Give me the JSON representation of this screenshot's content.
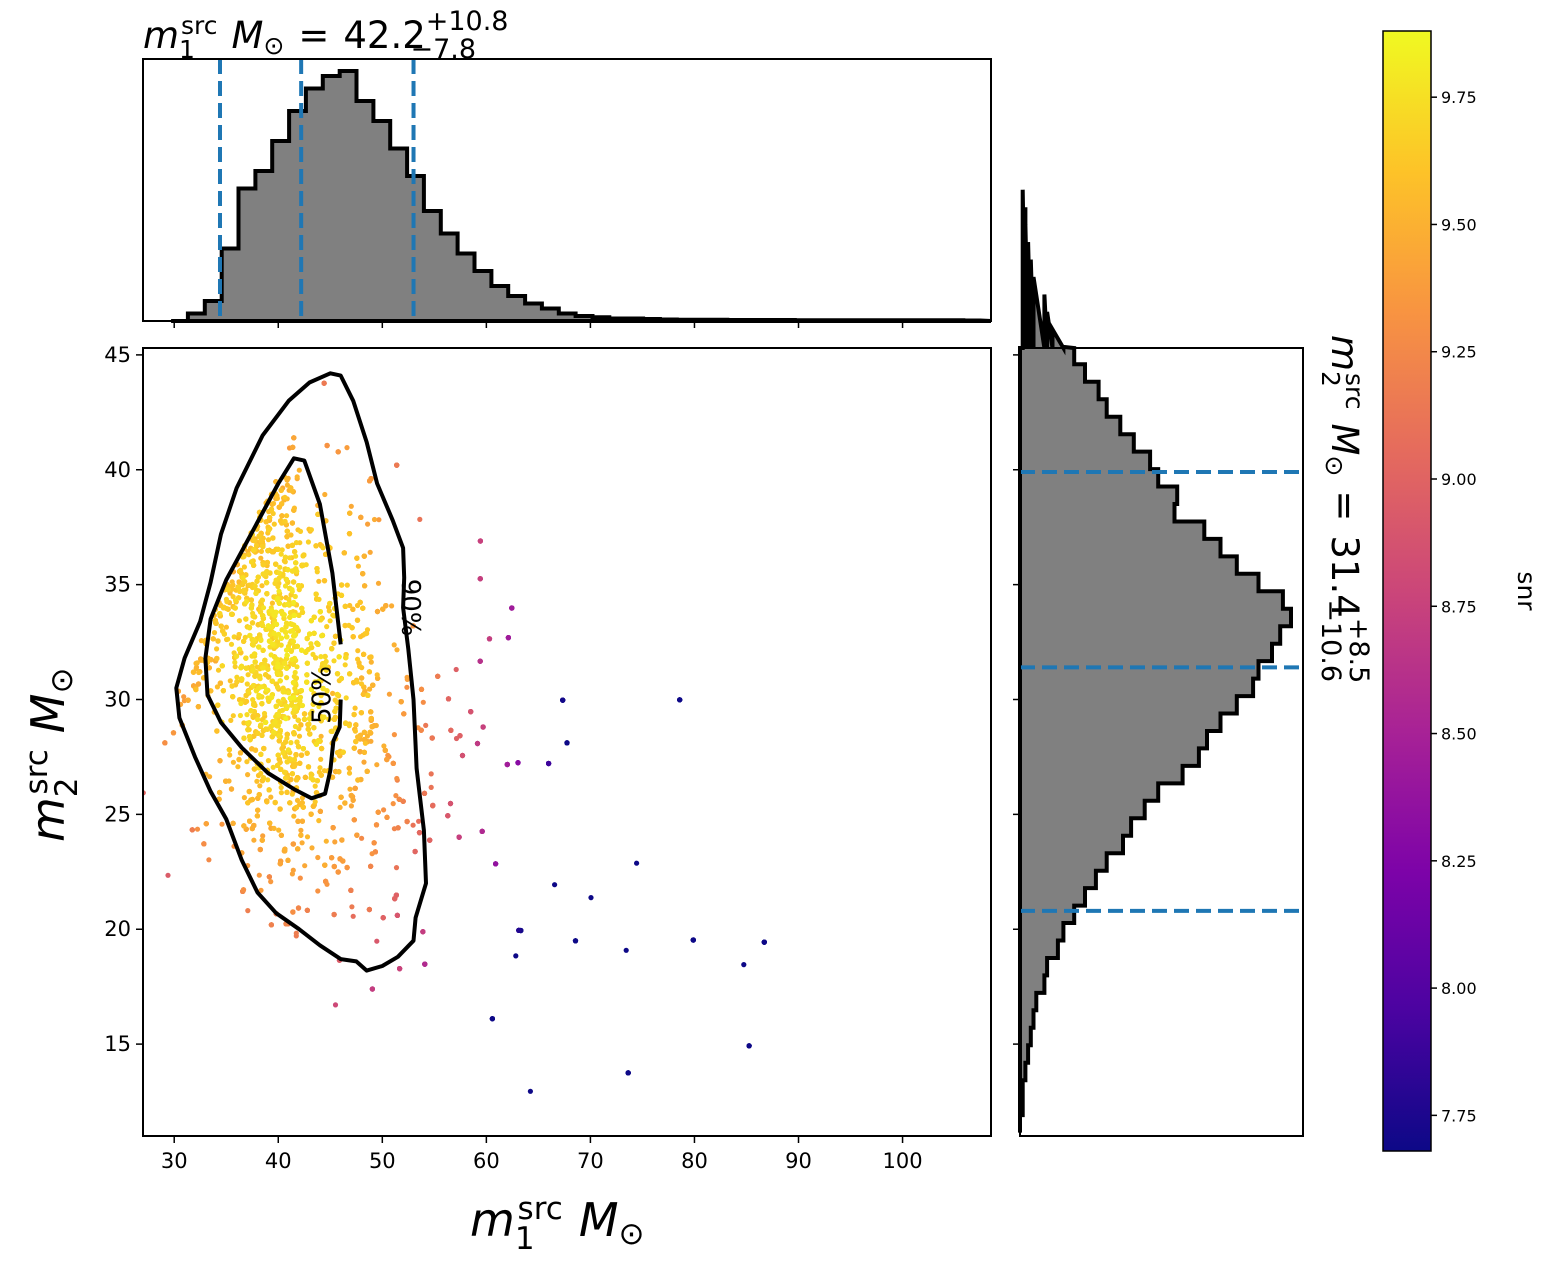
{
  "chart_data": {
    "type": "scatter",
    "top_title": {
      "var": "m",
      "sub": "1",
      "sup": "src",
      "unit": "M",
      "unit_sub": "⊙",
      "eq": "=",
      "value": "42.2",
      "plus": "+10.8",
      "minus": "−7.8"
    },
    "right_title": {
      "var": "m",
      "sub": "2",
      "sup": "src",
      "unit": "M",
      "unit_sub": "⊙",
      "eq": "=",
      "value": "31.4",
      "plus": "+8.5",
      "minus": "−10.6"
    },
    "xlabel": {
      "var": "m",
      "sub": "1",
      "sup": "src",
      "unit": "M",
      "unit_sub": "⊙"
    },
    "ylabel": {
      "var": "m",
      "sub": "2",
      "sup": "src",
      "unit": "M",
      "unit_sub": "⊙"
    },
    "colorbar_label": "snr",
    "xlim": [
      27,
      108.5
    ],
    "ylim": [
      11,
      45.3
    ],
    "x_ticks": [
      30,
      40,
      50,
      60,
      70,
      80,
      90,
      100
    ],
    "y_ticks": [
      15,
      20,
      25,
      30,
      35,
      40,
      45
    ],
    "colorbar": {
      "range": [
        7.68,
        9.88
      ],
      "ticks": [
        "7.75",
        "8.00",
        "8.25",
        "8.50",
        "8.75",
        "9.00",
        "9.25",
        "9.50",
        "9.75"
      ],
      "cmap": "plasma"
    },
    "m1_quantiles": [
      34.4,
      42.2,
      53.0
    ],
    "m2_quantiles": [
      20.8,
      31.4,
      39.9
    ],
    "contours": [
      {
        "label": "50%",
        "points": [
          [
            46.0,
            32.4
          ],
          [
            45.2,
            35.5
          ],
          [
            44.0,
            38.5
          ],
          [
            42.5,
            40.4
          ],
          [
            41.5,
            40.5
          ],
          [
            40.0,
            39.4
          ],
          [
            37.5,
            37.3
          ],
          [
            35.0,
            35.2
          ],
          [
            33.5,
            33.5
          ],
          [
            33.0,
            31.8
          ],
          [
            33.2,
            30.2
          ],
          [
            34.5,
            29.0
          ],
          [
            36.5,
            27.9
          ],
          [
            39.0,
            26.8
          ],
          [
            41.5,
            26.1
          ],
          [
            43.2,
            25.7
          ],
          [
            44.5,
            25.9
          ],
          [
            45.0,
            26.9
          ],
          [
            45.3,
            28.2
          ],
          [
            45.9,
            28.8
          ],
          [
            46.0,
            30.0
          ]
        ],
        "label_at": [
          45.0,
          30.2
        ]
      },
      {
        "label": "90%",
        "points": [
          [
            45.0,
            44.2
          ],
          [
            46.0,
            44.1
          ],
          [
            47.2,
            43.0
          ],
          [
            48.5,
            41.2
          ],
          [
            49.5,
            39.4
          ],
          [
            51.0,
            37.8
          ],
          [
            52.0,
            36.6
          ],
          [
            52.1,
            35.3
          ],
          [
            52.0,
            34.0
          ],
          [
            52.5,
            32.2
          ],
          [
            53.0,
            30.0
          ],
          [
            53.2,
            28.0
          ],
          [
            53.3,
            27.0
          ],
          [
            54.0,
            24.3
          ],
          [
            54.2,
            22.0
          ],
          [
            53.2,
            20.5
          ],
          [
            53.0,
            19.5
          ],
          [
            51.5,
            18.8
          ],
          [
            50.0,
            18.4
          ],
          [
            48.5,
            18.2
          ],
          [
            47.5,
            18.6
          ],
          [
            46.0,
            18.7
          ],
          [
            44.0,
            19.3
          ],
          [
            42.0,
            20.0
          ],
          [
            39.8,
            20.7
          ],
          [
            38.0,
            21.6
          ],
          [
            36.5,
            23.0
          ],
          [
            35.0,
            24.8
          ],
          [
            33.5,
            26.0
          ],
          [
            32.0,
            27.5
          ],
          [
            30.5,
            29.2
          ],
          [
            30.2,
            30.5
          ],
          [
            31.0,
            31.8
          ],
          [
            32.5,
            33.4
          ],
          [
            33.5,
            35.1
          ],
          [
            34.5,
            37.2
          ],
          [
            36.0,
            39.2
          ],
          [
            38.5,
            41.5
          ],
          [
            41.0,
            43.0
          ],
          [
            43.0,
            43.8
          ]
        ],
        "label_at": [
          51.9,
          34.0
        ]
      }
    ],
    "top_histogram": {
      "bin_edges_from": 29.7,
      "bin_width": 1.62,
      "heights": [
        0.0,
        0.03,
        0.08,
        0.29,
        0.53,
        0.6,
        0.72,
        0.84,
        0.93,
        0.98,
        1.0,
        0.88,
        0.8,
        0.69,
        0.58,
        0.44,
        0.35,
        0.27,
        0.2,
        0.14,
        0.1,
        0.07,
        0.05,
        0.03,
        0.02,
        0.015,
        0.01,
        0.01,
        0.008,
        0.006,
        0.005,
        0.005,
        0.005,
        0.004,
        0.004,
        0.004,
        0.004,
        0.003,
        0.003,
        0.003,
        0.003,
        0.003,
        0.003,
        0.003,
        0.003,
        0.003,
        0.003,
        0.002
      ]
    },
    "right_histogram": {
      "bin_edges_from": 11.15,
      "bin_width": 0.76,
      "heights": [
        0.0,
        0.01,
        0.01,
        0.02,
        0.03,
        0.04,
        0.05,
        0.06,
        0.09,
        0.1,
        0.14,
        0.16,
        0.2,
        0.24,
        0.28,
        0.32,
        0.38,
        0.41,
        0.46,
        0.51,
        0.6,
        0.66,
        0.69,
        0.74,
        0.8,
        0.86,
        0.88,
        0.93,
        0.96,
        1.0,
        0.97,
        0.88,
        0.8,
        0.74,
        0.68,
        0.57,
        0.58,
        0.51,
        0.48,
        0.42,
        0.37,
        0.32,
        0.29,
        0.24,
        0.2,
        0.16,
        0.12,
        0.1,
        0.09,
        0.05,
        0.04,
        0.03,
        0.02,
        0.02,
        0.01
      ]
    }
  }
}
